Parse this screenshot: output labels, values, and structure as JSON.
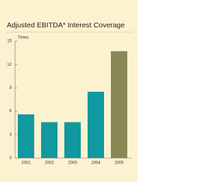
{
  "chart_data": {
    "type": "bar",
    "title": "Adjusted EBITDA* Interest Coverage",
    "y_label": "Times",
    "categories": [
      "2001",
      "2002",
      "2003",
      "2004",
      "2005"
    ],
    "values": [
      5.6,
      4.6,
      4.6,
      8.5,
      13.7
    ],
    "colors": [
      "#10999f",
      "#10999f",
      "#10999f",
      "#10999f",
      "#8a8857"
    ],
    "ylim": [
      0,
      15
    ],
    "yticks": [
      0,
      3,
      6,
      9,
      12,
      15
    ],
    "grid": false
  }
}
